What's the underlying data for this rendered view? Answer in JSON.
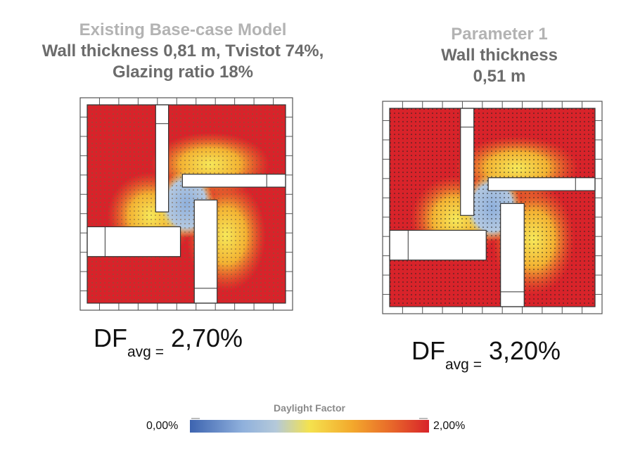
{
  "panels": [
    {
      "heading": "Existing Base-case Model",
      "subtitle_lines": [
        "Wall thickness 0,81 m, Tvistot 74%,",
        "Glazing ratio 18%"
      ],
      "df_label": "DF",
      "df_sub": "avg =",
      "df_value": "2,70%"
    },
    {
      "heading": "Parameter 1",
      "subtitle_lines": [
        "Wall thickness",
        "0,51 m"
      ],
      "df_label": "DF",
      "df_sub": "avg =",
      "df_value": "3,20%"
    }
  ],
  "legend": {
    "title": "Daylight Factor",
    "min": "0,00%",
    "max": "2,00%",
    "colors": [
      "#3d64b0",
      "#8fb0dc",
      "#f4e24e",
      "#e8692a",
      "#d8232a"
    ]
  }
}
